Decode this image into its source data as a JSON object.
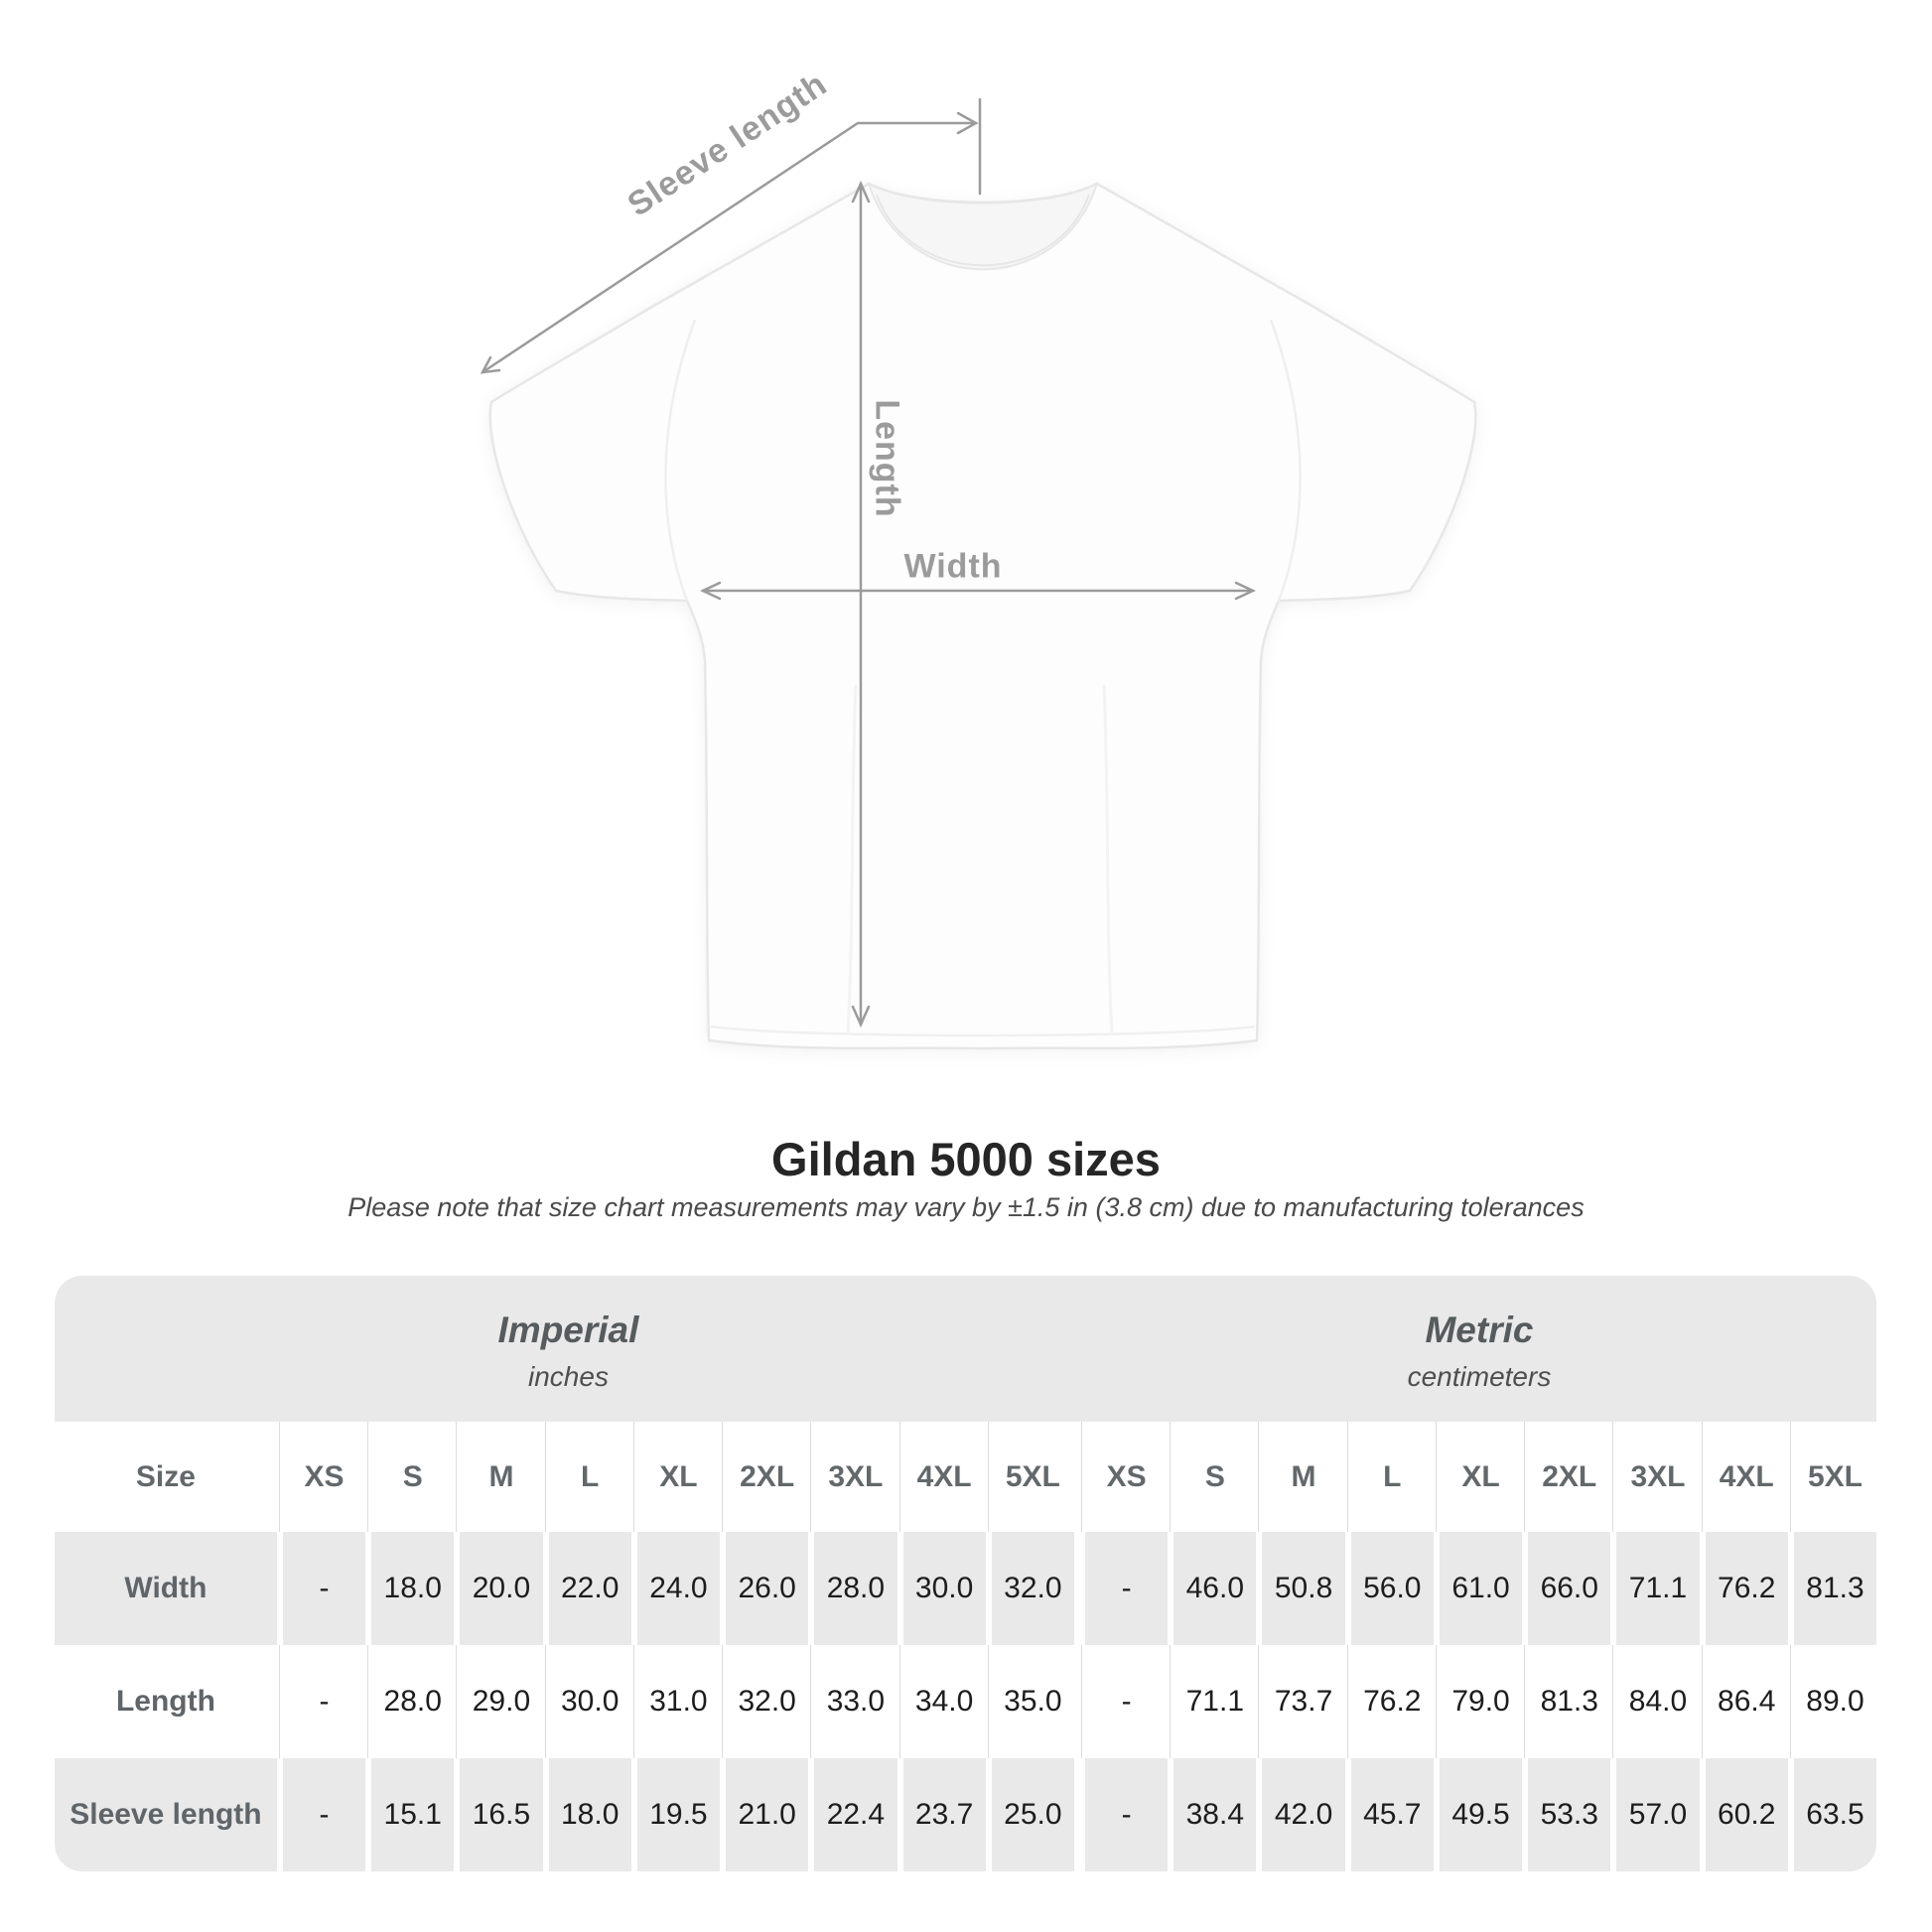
{
  "diagram": {
    "labels": {
      "sleeve_length": "Sleeve length",
      "length": "Length",
      "width": "Width"
    },
    "annotation_color": "#9b9b9b",
    "shirt_outline_color": "#e7e7e7"
  },
  "title": "Gildan 5000 sizes",
  "subtitle": "Please note that size chart measurements may vary by ±1.5 in (3.8 cm) due to manufacturing tolerances",
  "chart_data": {
    "type": "table",
    "title": "Gildan 5000 sizes",
    "corner_label": "Size",
    "column_groups": [
      {
        "label": "Imperial",
        "unit": "inches",
        "sizes": [
          "XS",
          "S",
          "M",
          "L",
          "XL",
          "2XL",
          "3XL",
          "4XL",
          "5XL"
        ]
      },
      {
        "label": "Metric",
        "unit": "centimeters",
        "sizes": [
          "XS",
          "S",
          "M",
          "L",
          "XL",
          "2XL",
          "3XL",
          "4XL",
          "5XL"
        ]
      }
    ],
    "rows": [
      {
        "label": "Width",
        "imperial": [
          "-",
          "18.0",
          "20.0",
          "22.0",
          "24.0",
          "26.0",
          "28.0",
          "30.0",
          "32.0"
        ],
        "metric": [
          "-",
          "46.0",
          "50.8",
          "56.0",
          "61.0",
          "66.0",
          "71.1",
          "76.2",
          "81.3"
        ]
      },
      {
        "label": "Length",
        "imperial": [
          "-",
          "28.0",
          "29.0",
          "30.0",
          "31.0",
          "32.0",
          "33.0",
          "34.0",
          "35.0"
        ],
        "metric": [
          "-",
          "71.1",
          "73.7",
          "76.2",
          "79.0",
          "81.3",
          "84.0",
          "86.4",
          "89.0"
        ]
      },
      {
        "label": "Sleeve length",
        "imperial": [
          "-",
          "15.1",
          "16.5",
          "18.0",
          "19.5",
          "21.0",
          "22.4",
          "23.7",
          "25.0"
        ],
        "metric": [
          "-",
          "38.4",
          "42.0",
          "45.7",
          "49.5",
          "53.3",
          "57.0",
          "60.2",
          "63.5"
        ]
      }
    ]
  },
  "colors": {
    "band_gray": "#e9e9e9",
    "separator": "#dcdcdc",
    "heading_text": "#63686b",
    "value_text": "#1d1d1d",
    "title_text": "#262626"
  }
}
